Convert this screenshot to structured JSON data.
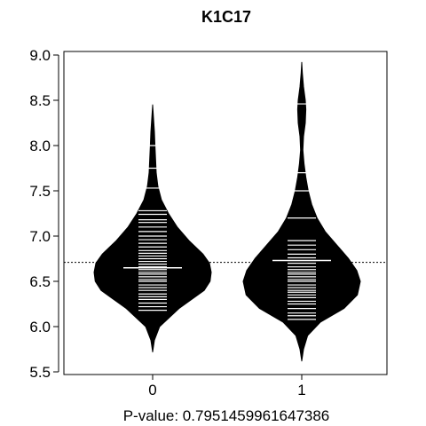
{
  "chart_data": {
    "type": "beanplot",
    "title": "K1C17",
    "xlabel": "P-value: 0.7951459961647386",
    "ylabel": "",
    "ylim": [
      5.5,
      9.0
    ],
    "y_ticks": [
      "5.5",
      "6.0",
      "6.5",
      "7.0",
      "7.5",
      "8.0",
      "8.5",
      "9.0"
    ],
    "categories": [
      "0",
      "1"
    ],
    "overall_mean": 6.71,
    "groups": [
      {
        "category": "0",
        "mean": 6.65,
        "range": [
          5.72,
          8.45
        ],
        "density": [
          [
            5.72,
            0.0
          ],
          [
            5.85,
            0.03
          ],
          [
            6.0,
            0.12
          ],
          [
            6.2,
            0.45
          ],
          [
            6.4,
            0.88
          ],
          [
            6.5,
            0.98
          ],
          [
            6.6,
            1.0
          ],
          [
            6.7,
            0.97
          ],
          [
            6.8,
            0.86
          ],
          [
            6.95,
            0.62
          ],
          [
            7.1,
            0.42
          ],
          [
            7.25,
            0.27
          ],
          [
            7.4,
            0.15
          ],
          [
            7.55,
            0.09
          ],
          [
            7.7,
            0.06
          ],
          [
            7.85,
            0.05
          ],
          [
            8.0,
            0.04
          ],
          [
            8.15,
            0.03
          ],
          [
            8.3,
            0.015
          ],
          [
            8.45,
            0.0
          ]
        ],
        "points": [
          6.18,
          6.22,
          6.26,
          6.3,
          6.33,
          6.36,
          6.4,
          6.43,
          6.46,
          6.5,
          6.52,
          6.55,
          6.58,
          6.6,
          6.63,
          6.66,
          6.69,
          6.72,
          6.75,
          6.78,
          6.81,
          6.84,
          6.88,
          6.92,
          6.96,
          7.0,
          7.05,
          7.1,
          7.15,
          7.18,
          7.24,
          7.28,
          7.53,
          7.75,
          8.0
        ]
      },
      {
        "category": "1",
        "mean": 6.73,
        "range": [
          5.62,
          8.92
        ],
        "density": [
          [
            5.62,
            0.0
          ],
          [
            5.75,
            0.03
          ],
          [
            5.9,
            0.1
          ],
          [
            6.05,
            0.32
          ],
          [
            6.2,
            0.72
          ],
          [
            6.35,
            0.95
          ],
          [
            6.5,
            1.0
          ],
          [
            6.62,
            0.94
          ],
          [
            6.75,
            0.8
          ],
          [
            6.9,
            0.6
          ],
          [
            7.05,
            0.4
          ],
          [
            7.2,
            0.26
          ],
          [
            7.35,
            0.17
          ],
          [
            7.5,
            0.11
          ],
          [
            7.65,
            0.07
          ],
          [
            7.8,
            0.04
          ],
          [
            7.95,
            0.02
          ],
          [
            8.1,
            0.03
          ],
          [
            8.25,
            0.06
          ],
          [
            8.4,
            0.07
          ],
          [
            8.5,
            0.06
          ],
          [
            8.65,
            0.03
          ],
          [
            8.8,
            0.01
          ],
          [
            8.92,
            0.0
          ]
        ],
        "points": [
          6.08,
          6.12,
          6.15,
          6.2,
          6.25,
          6.28,
          6.32,
          6.35,
          6.38,
          6.4,
          6.43,
          6.46,
          6.5,
          6.52,
          6.55,
          6.58,
          6.6,
          6.63,
          6.66,
          6.7,
          6.73,
          6.76,
          6.8,
          6.85,
          6.9,
          6.95,
          7.2,
          7.5,
          7.7,
          8.46
        ]
      }
    ]
  }
}
